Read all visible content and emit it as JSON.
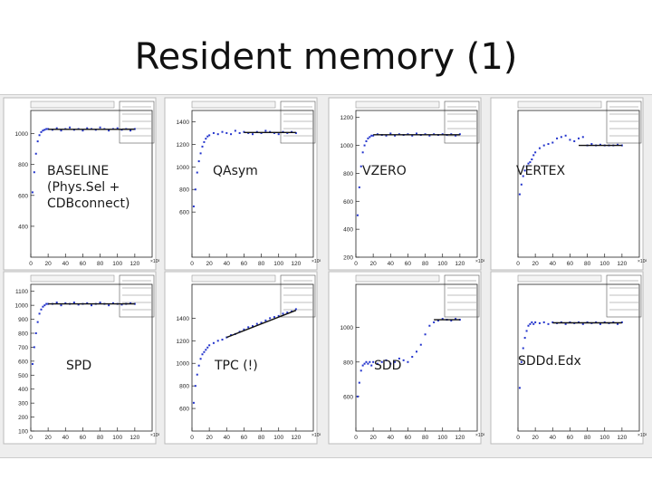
{
  "title": "Resident memory (1)",
  "chart_data": [
    {
      "type": "scatter",
      "label": "BASELINE\n(Phys.Sel +\nCDBconnect)",
      "xlim": [
        0,
        140
      ],
      "ylim": [
        200,
        1150
      ],
      "xticks": [
        0,
        20,
        40,
        60,
        80,
        100,
        120
      ],
      "yticks": [
        400,
        600,
        800,
        1000
      ],
      "x_exponent": "×10³",
      "x": [
        2,
        4,
        6,
        8,
        10,
        12,
        14,
        16,
        18,
        20,
        25,
        30,
        35,
        40,
        45,
        50,
        55,
        60,
        65,
        70,
        75,
        80,
        85,
        90,
        95,
        100,
        105,
        110,
        115,
        120
      ],
      "y": [
        620,
        750,
        870,
        950,
        990,
        1010,
        1020,
        1025,
        1030,
        1030,
        1025,
        1035,
        1020,
        1030,
        1040,
        1025,
        1030,
        1020,
        1035,
        1030,
        1025,
        1040,
        1030,
        1020,
        1030,
        1035,
        1025,
        1030,
        1020,
        1030
      ],
      "fit_line": {
        "x": [
          20,
          120
        ],
        "y": [
          1028,
          1028
        ]
      }
    },
    {
      "type": "scatter",
      "label": "QAsym",
      "xlim": [
        0,
        140
      ],
      "ylim": [
        200,
        1500
      ],
      "xticks": [
        0,
        20,
        40,
        60,
        80,
        100,
        120
      ],
      "yticks": [
        600,
        800,
        1000,
        1200,
        1400
      ],
      "x_exponent": "×10³",
      "x": [
        2,
        4,
        6,
        8,
        10,
        12,
        14,
        16,
        18,
        20,
        25,
        30,
        35,
        40,
        45,
        50,
        55,
        60,
        65,
        70,
        75,
        80,
        85,
        90,
        95,
        100,
        105,
        110,
        115,
        120
      ],
      "y": [
        650,
        800,
        950,
        1050,
        1120,
        1180,
        1220,
        1250,
        1270,
        1280,
        1300,
        1290,
        1310,
        1300,
        1290,
        1320,
        1300,
        1310,
        1300,
        1290,
        1310,
        1300,
        1320,
        1310,
        1300,
        1290,
        1310,
        1300,
        1310,
        1300
      ],
      "fit_line": {
        "x": [
          60,
          120
        ],
        "y": [
          1305,
          1305
        ]
      }
    },
    {
      "type": "scatter",
      "label": "VZERO",
      "xlim": [
        0,
        140
      ],
      "ylim": [
        200,
        1250
      ],
      "xticks": [
        0,
        20,
        40,
        60,
        80,
        100,
        120
      ],
      "yticks": [
        200,
        400,
        600,
        800,
        1000,
        1200
      ],
      "x_exponent": "×10³",
      "x": [
        2,
        4,
        6,
        8,
        10,
        12,
        14,
        16,
        18,
        20,
        25,
        30,
        35,
        40,
        45,
        50,
        55,
        60,
        65,
        70,
        75,
        80,
        85,
        90,
        95,
        100,
        105,
        110,
        115,
        120
      ],
      "y": [
        500,
        700,
        850,
        950,
        1000,
        1030,
        1050,
        1060,
        1070,
        1070,
        1080,
        1075,
        1070,
        1085,
        1070,
        1080,
        1075,
        1080,
        1070,
        1085,
        1075,
        1080,
        1070,
        1080,
        1075,
        1080,
        1075,
        1080,
        1070,
        1080
      ],
      "fit_line": {
        "x": [
          20,
          120
        ],
        "y": [
          1076,
          1076
        ]
      }
    },
    {
      "type": "scatter",
      "label": "VERTEX",
      "xlim": [
        0,
        140
      ],
      "ylim": [
        200,
        1250
      ],
      "xticks": [
        0,
        20,
        40,
        60,
        80,
        100,
        120
      ],
      "yticks": [],
      "x_exponent": "×10³",
      "x": [
        2,
        4,
        6,
        8,
        10,
        12,
        14,
        16,
        18,
        20,
        25,
        30,
        35,
        40,
        45,
        50,
        55,
        60,
        65,
        70,
        75,
        80,
        85,
        90,
        95,
        100,
        105,
        110,
        115,
        120
      ],
      "y": [
        650,
        720,
        780,
        820,
        850,
        870,
        880,
        900,
        930,
        950,
        980,
        1000,
        1010,
        1020,
        1050,
        1060,
        1070,
        1040,
        1030,
        1050,
        1060,
        1000,
        1010,
        1000,
        1005,
        1000,
        1000,
        1000,
        1005,
        1000
      ],
      "fit_line": {
        "x": [
          70,
          120
        ],
        "y": [
          1000,
          1000
        ]
      }
    },
    {
      "type": "scatter",
      "label": "SPD",
      "xlim": [
        0,
        140
      ],
      "ylim": [
        100,
        1150
      ],
      "xticks": [
        0,
        20,
        40,
        60,
        80,
        100,
        120
      ],
      "yticks": [
        100,
        200,
        300,
        400,
        500,
        600,
        700,
        800,
        900,
        1000,
        1100
      ],
      "x_exponent": "×10³",
      "x": [
        2,
        4,
        6,
        8,
        10,
        12,
        14,
        16,
        18,
        20,
        25,
        30,
        35,
        40,
        45,
        50,
        55,
        60,
        65,
        70,
        75,
        80,
        85,
        90,
        95,
        100,
        105,
        110,
        115,
        120
      ],
      "y": [
        580,
        700,
        800,
        880,
        940,
        970,
        990,
        1000,
        1010,
        1010,
        1010,
        1020,
        1000,
        1015,
        1010,
        1020,
        1005,
        1010,
        1015,
        1000,
        1010,
        1020,
        1010,
        1000,
        1015,
        1010,
        1005,
        1010,
        1015,
        1010
      ],
      "fit_line": {
        "x": [
          20,
          120
        ],
        "y": [
          1010,
          1010
        ]
      }
    },
    {
      "type": "scatter",
      "label": "TPC (!)",
      "xlim": [
        0,
        140
      ],
      "ylim": [
        400,
        1700
      ],
      "xticks": [
        0,
        20,
        40,
        60,
        80,
        100,
        120
      ],
      "yticks": [
        600,
        800,
        1000,
        1200,
        1400
      ],
      "x_exponent": "×10³",
      "x": [
        2,
        4,
        6,
        8,
        10,
        12,
        14,
        16,
        18,
        20,
        25,
        30,
        35,
        40,
        45,
        50,
        55,
        60,
        65,
        70,
        75,
        80,
        85,
        90,
        95,
        100,
        105,
        110,
        115,
        120
      ],
      "y": [
        650,
        800,
        900,
        980,
        1040,
        1080,
        1100,
        1120,
        1140,
        1160,
        1180,
        1200,
        1210,
        1230,
        1250,
        1260,
        1280,
        1300,
        1320,
        1330,
        1350,
        1360,
        1380,
        1400,
        1410,
        1420,
        1440,
        1450,
        1460,
        1480
      ],
      "fit_line": {
        "x": [
          40,
          120
        ],
        "y": [
          1230,
          1470
        ]
      }
    },
    {
      "type": "scatter",
      "label": "SDD",
      "xlim": [
        0,
        140
      ],
      "ylim": [
        400,
        1250
      ],
      "xticks": [
        0,
        20,
        40,
        60,
        80,
        100,
        120
      ],
      "yticks": [
        600,
        800,
        1000
      ],
      "x_exponent": "×10³",
      "x": [
        2,
        4,
        6,
        8,
        10,
        12,
        14,
        16,
        18,
        20,
        25,
        30,
        35,
        40,
        45,
        50,
        55,
        60,
        65,
        70,
        75,
        80,
        85,
        90,
        95,
        100,
        105,
        110,
        115,
        120
      ],
      "y": [
        600,
        680,
        750,
        780,
        790,
        800,
        790,
        800,
        780,
        800,
        790,
        800,
        810,
        790,
        800,
        820,
        810,
        800,
        830,
        860,
        900,
        960,
        1010,
        1030,
        1040,
        1050,
        1045,
        1040,
        1050,
        1045
      ],
      "fit_line": {
        "x": [
          90,
          120
        ],
        "y": [
          1045,
          1045
        ]
      }
    },
    {
      "type": "scatter",
      "label": "SDDd.Edx",
      "xlim": [
        0,
        140
      ],
      "ylim": [
        400,
        1250
      ],
      "xticks": [
        0,
        20,
        40,
        60,
        80,
        100,
        120
      ],
      "yticks": [],
      "x_exponent": "×10³",
      "x": [
        2,
        4,
        6,
        8,
        10,
        12,
        14,
        16,
        18,
        20,
        25,
        30,
        35,
        40,
        45,
        50,
        55,
        60,
        65,
        70,
        75,
        80,
        85,
        90,
        95,
        100,
        105,
        110,
        115,
        120
      ],
      "y": [
        650,
        800,
        880,
        940,
        980,
        1010,
        1020,
        1030,
        1020,
        1030,
        1025,
        1030,
        1020,
        1030,
        1025,
        1030,
        1020,
        1030,
        1025,
        1030,
        1020,
        1030,
        1025,
        1030,
        1020,
        1030,
        1025,
        1030,
        1020,
        1030
      ],
      "fit_line": {
        "x": [
          40,
          120
        ],
        "y": [
          1027,
          1027
        ]
      }
    }
  ]
}
